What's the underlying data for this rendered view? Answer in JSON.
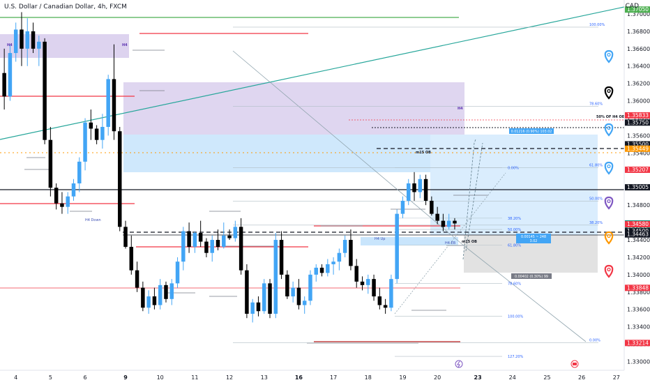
{
  "title": "U.S. Dollar / Canadian Dollar, 4h, FXCM",
  "currency": "CAD",
  "chart_data": {
    "type": "candlestick",
    "ylim": [
      1.329,
      1.3716
    ],
    "y_ticks": [
      "1.37000",
      "1.36800",
      "1.36600",
      "1.36400",
      "1.36200",
      "1.36000",
      "1.35800",
      "1.35600",
      "1.35400",
      "1.35200",
      "1.35000",
      "1.34800",
      "1.34600",
      "1.34400",
      "1.34200",
      "1.34000",
      "1.33800",
      "1.33600",
      "1.33400",
      "1.33200",
      "1.33000"
    ],
    "x_labels": [
      {
        "label": "4",
        "bar": 2,
        "bold": false
      },
      {
        "label": "5",
        "bar": 8,
        "bold": false
      },
      {
        "label": "6",
        "bar": 14,
        "bold": false
      },
      {
        "label": "9",
        "bar": 21,
        "bold": true
      },
      {
        "label": "10",
        "bar": 27,
        "bold": false
      },
      {
        "label": "11",
        "bar": 33,
        "bold": false
      },
      {
        "label": "12",
        "bar": 39,
        "bold": false
      },
      {
        "label": "13",
        "bar": 45,
        "bold": false
      },
      {
        "label": "16",
        "bar": 51,
        "bold": true
      },
      {
        "label": "17",
        "bar": 57,
        "bold": false
      },
      {
        "label": "18",
        "bar": 63,
        "bold": false
      },
      {
        "label": "19",
        "bar": 69,
        "bold": false
      },
      {
        "label": "20",
        "bar": 75,
        "bold": false
      },
      {
        "label": "23",
        "bar": 82,
        "bold": true
      },
      {
        "label": "24",
        "bar": 88,
        "bold": false
      },
      {
        "label": "25",
        "bar": 94,
        "bold": false
      },
      {
        "label": "26",
        "bar": 100,
        "bold": false
      },
      {
        "label": "27",
        "bar": 106,
        "bold": false
      }
    ],
    "candles": [
      [
        1.3632,
        1.366,
        1.359,
        1.3605
      ],
      [
        1.3605,
        1.3665,
        1.36,
        1.3655
      ],
      [
        1.3655,
        1.369,
        1.3645,
        1.3682
      ],
      [
        1.3682,
        1.3702,
        1.364,
        1.366
      ],
      [
        1.366,
        1.3695,
        1.364,
        1.368
      ],
      [
        1.368,
        1.369,
        1.3655,
        1.366
      ],
      [
        1.366,
        1.3675,
        1.364,
        1.3668
      ],
      [
        1.3668,
        1.3672,
        1.355,
        1.3555
      ],
      [
        1.3555,
        1.357,
        1.349,
        1.35
      ],
      [
        1.35,
        1.3505,
        1.3475,
        1.3482
      ],
      [
        1.3482,
        1.3495,
        1.347,
        1.3478
      ],
      [
        1.3478,
        1.3495,
        1.347,
        1.349
      ],
      [
        1.349,
        1.351,
        1.3485,
        1.3505
      ],
      [
        1.3505,
        1.3535,
        1.3495,
        1.353
      ],
      [
        1.353,
        1.358,
        1.352,
        1.3575
      ],
      [
        1.3575,
        1.359,
        1.3555,
        1.3568
      ],
      [
        1.3568,
        1.3572,
        1.355,
        1.3555
      ],
      [
        1.3555,
        1.3585,
        1.3545,
        1.357
      ],
      [
        1.357,
        1.363,
        1.356,
        1.3625
      ],
      [
        1.3625,
        1.3665,
        1.3555,
        1.3565
      ],
      [
        1.3565,
        1.357,
        1.345,
        1.3455
      ],
      [
        1.3455,
        1.3462,
        1.343,
        1.3432
      ],
      [
        1.3432,
        1.3445,
        1.34,
        1.3405
      ],
      [
        1.3405,
        1.3415,
        1.338,
        1.3385
      ],
      [
        1.3385,
        1.3392,
        1.3358,
        1.3362
      ],
      [
        1.3362,
        1.3382,
        1.3355,
        1.3375
      ],
      [
        1.3375,
        1.3385,
        1.336,
        1.3365
      ],
      [
        1.3365,
        1.3395,
        1.336,
        1.3388
      ],
      [
        1.3388,
        1.3392,
        1.3368,
        1.3372
      ],
      [
        1.3372,
        1.3395,
        1.3365,
        1.339
      ],
      [
        1.339,
        1.342,
        1.3385,
        1.3415
      ],
      [
        1.3415,
        1.3455,
        1.3405,
        1.345
      ],
      [
        1.345,
        1.346,
        1.3425,
        1.3432
      ],
      [
        1.3432,
        1.345,
        1.3425,
        1.3448
      ],
      [
        1.3448,
        1.3462,
        1.3432,
        1.3438
      ],
      [
        1.3438,
        1.3442,
        1.342,
        1.3425
      ],
      [
        1.3425,
        1.3445,
        1.3415,
        1.344
      ],
      [
        1.344,
        1.3452,
        1.3428,
        1.3432
      ],
      [
        1.3432,
        1.346,
        1.343,
        1.3445
      ],
      [
        1.3445,
        1.3452,
        1.344,
        1.3442
      ],
      [
        1.3442,
        1.3462,
        1.3438,
        1.3455
      ],
      [
        1.3455,
        1.3465,
        1.34,
        1.3405
      ],
      [
        1.3405,
        1.3412,
        1.335,
        1.3355
      ],
      [
        1.3355,
        1.3372,
        1.3345,
        1.3368
      ],
      [
        1.3368,
        1.3375,
        1.3352,
        1.3358
      ],
      [
        1.3358,
        1.3395,
        1.3355,
        1.339
      ],
      [
        1.339,
        1.3395,
        1.335,
        1.3355
      ],
      [
        1.3355,
        1.3448,
        1.335,
        1.344
      ],
      [
        1.344,
        1.345,
        1.3395,
        1.34
      ],
      [
        1.34,
        1.3405,
        1.3372,
        1.3375
      ],
      [
        1.3375,
        1.3392,
        1.3368,
        1.3385
      ],
      [
        1.3385,
        1.3395,
        1.336,
        1.3365
      ],
      [
        1.3365,
        1.3375,
        1.3355,
        1.337
      ],
      [
        1.337,
        1.3405,
        1.3365,
        1.34
      ],
      [
        1.34,
        1.3412,
        1.3392,
        1.3408
      ],
      [
        1.3408,
        1.3412,
        1.3398,
        1.3402
      ],
      [
        1.3402,
        1.3418,
        1.3398,
        1.3412
      ],
      [
        1.3412,
        1.342,
        1.34,
        1.3415
      ],
      [
        1.3415,
        1.343,
        1.3405,
        1.3425
      ],
      [
        1.3425,
        1.3445,
        1.342,
        1.344
      ],
      [
        1.344,
        1.3452,
        1.3405,
        1.341
      ],
      [
        1.341,
        1.3418,
        1.3385,
        1.3392
      ],
      [
        1.3392,
        1.3398,
        1.3382,
        1.3388
      ],
      [
        1.3388,
        1.34,
        1.3378,
        1.3395
      ],
      [
        1.3395,
        1.34,
        1.337,
        1.3375
      ],
      [
        1.3375,
        1.3385,
        1.336,
        1.3365
      ],
      [
        1.3365,
        1.3372,
        1.3355,
        1.3362
      ],
      [
        1.3362,
        1.34,
        1.3358,
        1.3395
      ],
      [
        1.3395,
        1.3475,
        1.339,
        1.347
      ],
      [
        1.347,
        1.349,
        1.3465,
        1.3485
      ],
      [
        1.3485,
        1.351,
        1.348,
        1.3505
      ],
      [
        1.3505,
        1.3518,
        1.3485,
        1.3495
      ],
      [
        1.3495,
        1.3515,
        1.3488,
        1.351
      ],
      [
        1.351,
        1.3515,
        1.348,
        1.3485
      ],
      [
        1.3485,
        1.349,
        1.3468,
        1.347
      ],
      [
        1.347,
        1.3478,
        1.3458,
        1.3462
      ],
      [
        1.3462,
        1.347,
        1.345,
        1.3455
      ],
      [
        1.3455,
        1.347,
        1.3452,
        1.3462
      ],
      [
        1.3462,
        1.3465,
        1.3452,
        1.34589
      ]
    ],
    "price_labels": [
      {
        "text": "1.37050",
        "price": 1.3705,
        "bg": "#4caf50",
        "fg": "#ffffff"
      },
      {
        "text": "1.35833",
        "price": 1.35833,
        "bg": "#f23645",
        "fg": "#ffffff"
      },
      {
        "text": "1.35750",
        "price": 1.3575,
        "bg": "#131722",
        "fg": "#ffffff"
      },
      {
        "text": "1.35500",
        "price": 1.355,
        "bg": "#131722",
        "fg": "#ffffff"
      },
      {
        "text": "1.35449",
        "price": 1.35449,
        "bg": "#ff9800",
        "fg": "#ffffff"
      },
      {
        "text": "1.35207",
        "price": 1.35207,
        "bg": "#f23645",
        "fg": "#ffffff"
      },
      {
        "text": "1.35005",
        "price": 1.35005,
        "bg": "#131722",
        "fg": "#ffffff"
      },
      {
        "text": "1.34589",
        "price": 1.34589,
        "bg": "#089981",
        "fg": "#ffffff",
        "sub": "03:16:20"
      },
      {
        "text": "1.34580",
        "price": 1.3458,
        "bg": "#f23645",
        "fg": "#ffffff"
      },
      {
        "text": "1.34500",
        "price": 1.345,
        "bg": "#131722",
        "fg": "#ffffff"
      },
      {
        "text": "1.34463",
        "price": 1.34463,
        "bg": "#131722",
        "fg": "#ffffff"
      },
      {
        "text": "1.33848",
        "price": 1.33848,
        "bg": "#f23645",
        "fg": "#ffffff"
      },
      {
        "text": "1.33214",
        "price": 1.33214,
        "bg": "#f23645",
        "fg": "#ffffff"
      }
    ],
    "annotations": {
      "h4_left": "H4",
      "h4_right": "H4",
      "h4_mid": "H4",
      "h4_down": "H4 Down",
      "h4_up": "H4 Up",
      "h4_eq": "H4 EB",
      "m15_ob_top": "m15 OB",
      "m15_ob_bottom": "m15 OB",
      "fifty_h4_ob": "50% OF H4 OB",
      "target_box": "0.01216 (0.90%) 103.02",
      "current_box_line1": "0.00145 ~ 248",
      "current_box_line2": "3.02",
      "stop_box": "0.00402 (0.30%) 99"
    },
    "fib_right": [
      "100.00%",
      "78.60%",
      "61.80%",
      "50.00%",
      "38.20%",
      "0.00%"
    ],
    "fib_right_prices": [
      1.36848,
      1.35935,
      1.3523,
      1.34847,
      1.3457,
      1.33216
    ],
    "fib_mid": [
      "0.00%",
      "38.20%",
      "50.00%",
      "61.80%",
      "78.60%",
      "100.00%",
      "127.20%"
    ],
    "fib_mid_prices": [
      1.35229,
      1.3465,
      1.3452,
      1.3434,
      1.339,
      1.33522,
      1.3306
    ]
  }
}
